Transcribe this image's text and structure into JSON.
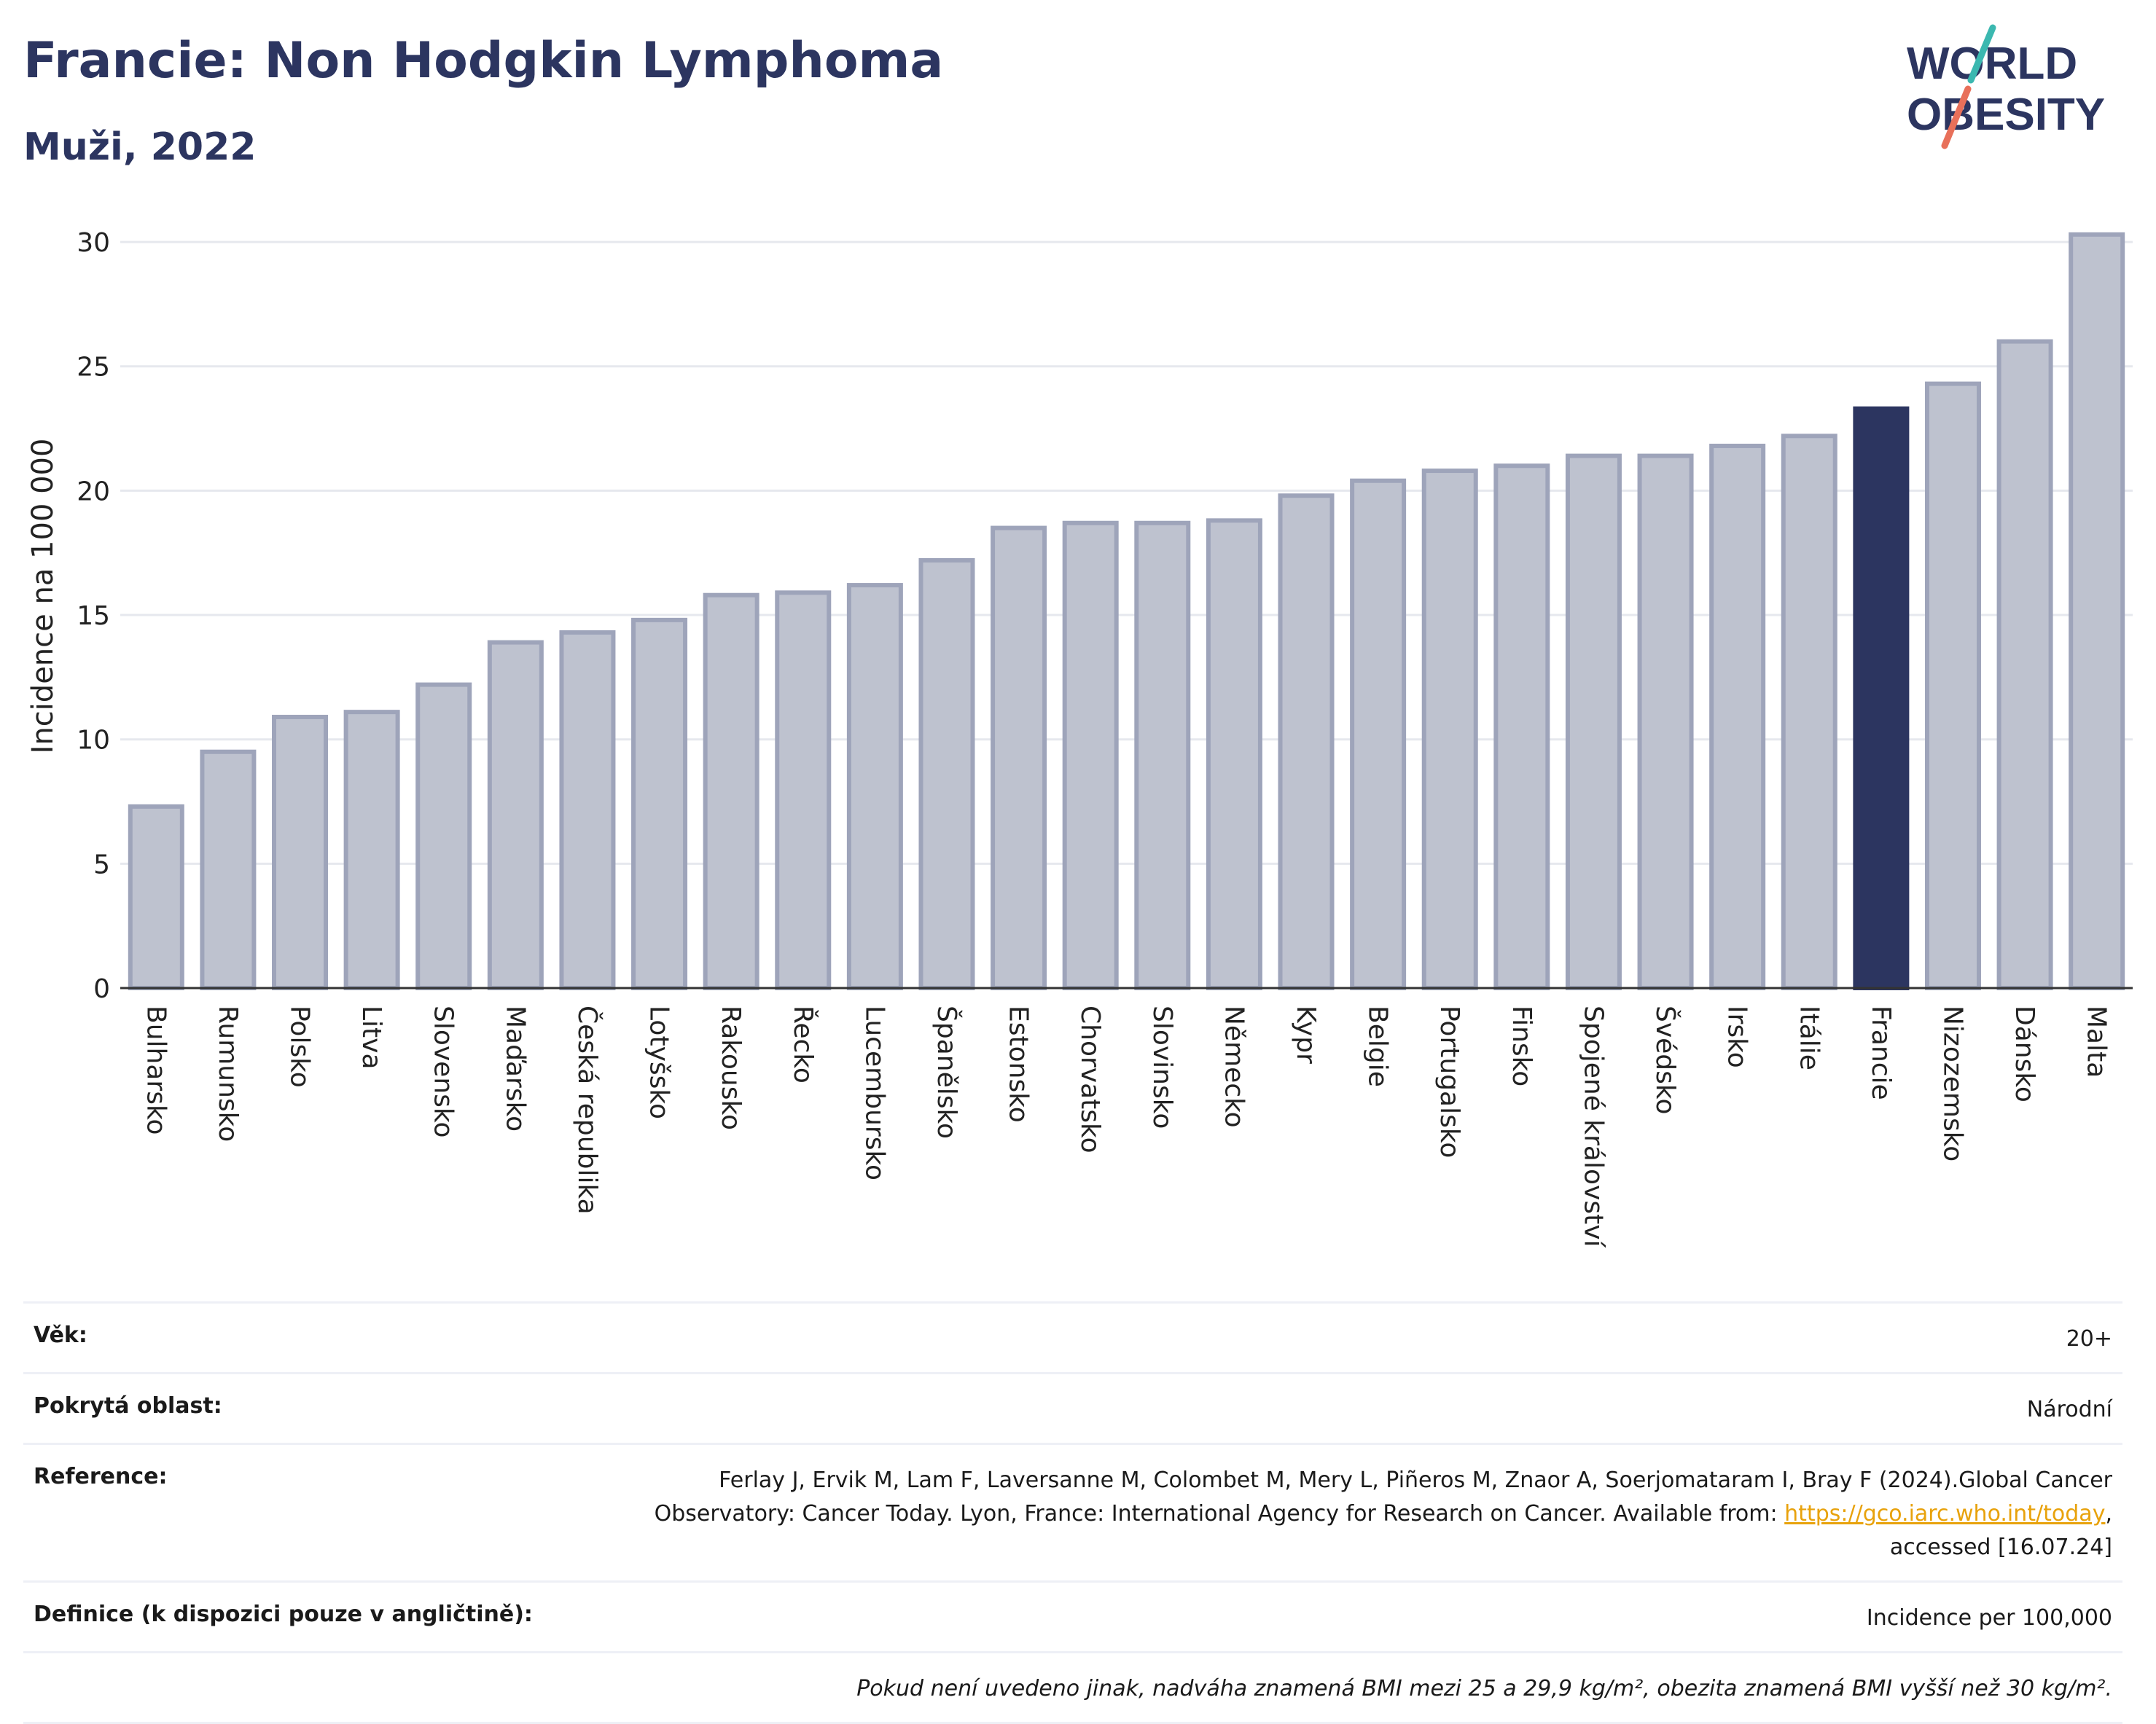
{
  "header": {
    "title": "Francie: Non Hodgkin Lymphoma",
    "subtitle": "Muži, 2022"
  },
  "logo": {
    "line1": "WORLD",
    "line2": "OBESITY",
    "text_color": "#2c3560",
    "slash_colors": [
      "#3bb8b0",
      "#e8705a"
    ]
  },
  "colors": {
    "bar": "#bec2cf",
    "bar_stroke": "#9ea4ba",
    "highlight": "#2c3560",
    "grid": "#e6e8ee",
    "axis": "#333333"
  },
  "chart_data": {
    "type": "bar",
    "ylabel": "Incidence na 100 000",
    "ylim": [
      0,
      30.5
    ],
    "yticks": [
      0,
      5,
      10,
      15,
      20,
      25,
      30
    ],
    "grid": true,
    "highlight": "Francie",
    "categories": [
      "Bulharsko",
      "Rumunsko",
      "Polsko",
      "Litva",
      "Slovensko",
      "Maďarsko",
      "Česká republika",
      "Lotyšsko",
      "Rakousko",
      "Řecko",
      "Lucembursko",
      "Španělsko",
      "Estonsko",
      "Chorvatsko",
      "Slovinsko",
      "Německo",
      "Kypr",
      "Belgie",
      "Portugalsko",
      "Finsko",
      "Spojené království",
      "Švédsko",
      "Irsko",
      "Itálie",
      "Francie",
      "Nizozemsko",
      "Dánsko",
      "Malta"
    ],
    "values": [
      7.3,
      9.5,
      10.9,
      11.1,
      12.2,
      13.9,
      14.3,
      14.8,
      15.8,
      15.9,
      16.2,
      17.2,
      18.5,
      18.7,
      18.7,
      18.8,
      19.8,
      20.4,
      20.8,
      21.0,
      21.4,
      21.4,
      21.8,
      22.2,
      23.3,
      24.3,
      26.0,
      30.3
    ]
  },
  "info": {
    "rows": [
      {
        "label": "Věk:",
        "value": "20+"
      },
      {
        "label": "Pokrytá oblast:",
        "value": "Národní"
      },
      {
        "label": "Reference:",
        "value_pre": "Ferlay J, Ervik M, Lam F, Laversanne M, Colombet M, Mery L, Piñeros M, Znaor A, Soerjomataram I, Bray F (2024).Global Cancer Observatory: Cancer Today. Lyon, France: International Agency for Research on Cancer. Available from: ",
        "link": "https://gco.iarc.who.int/today",
        "value_post": ", accessed [16.07.24]"
      },
      {
        "label": "Definice (k dispozici pouze v angličtině):",
        "value": "Incidence per 100,000"
      }
    ],
    "note": "Pokud není uvedeno jinak, nadváha znamená BMI mezi 25 a 29,9 kg/m², obezita znamená BMI vyšší než 30 kg/m²."
  }
}
